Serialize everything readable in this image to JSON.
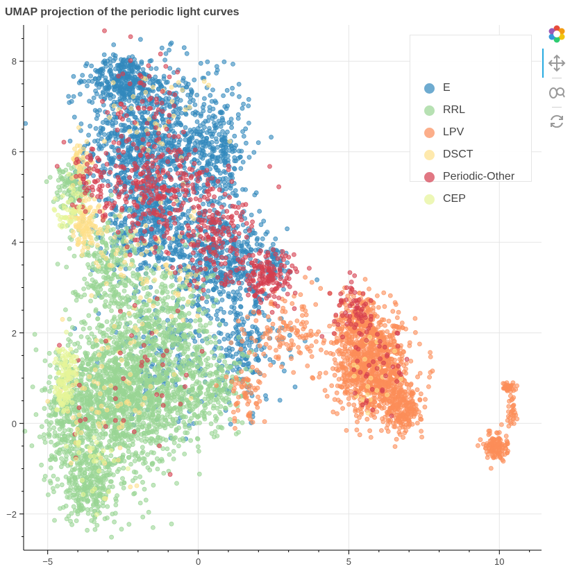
{
  "chart_data": {
    "type": "scatter",
    "title": "UMAP projection of the periodic light curves",
    "xlabel": "",
    "ylabel": "",
    "xlim": [
      -5.8,
      11.4
    ],
    "ylim": [
      -2.8,
      8.8
    ],
    "xticks": [
      -5,
      0,
      5,
      10
    ],
    "xtick_labels": [
      "−5",
      "0",
      "5",
      "10"
    ],
    "yticks": [
      -2,
      0,
      2,
      4,
      6,
      8
    ],
    "ytick_labels": [
      "−2",
      "0",
      "2",
      "4",
      "6",
      "8"
    ],
    "grid": true,
    "legend_position": "top-right",
    "series": [
      {
        "name": "E",
        "color": "#3288bd",
        "regions": [
          {
            "cx": -1.8,
            "cy": 6.2,
            "sx": 1.3,
            "sy": 1.2,
            "n": 900
          },
          {
            "cx": -2.5,
            "cy": 7.6,
            "sx": 0.7,
            "sy": 0.35,
            "n": 250
          },
          {
            "cx": 0.5,
            "cy": 6.0,
            "sx": 0.8,
            "sy": 1.0,
            "n": 350
          },
          {
            "cx": 0.8,
            "cy": 3.6,
            "sx": 1.0,
            "sy": 0.8,
            "n": 450
          },
          {
            "cx": -1.5,
            "cy": 4.3,
            "sx": 1.0,
            "sy": 0.7,
            "n": 350
          },
          {
            "cx": 1.5,
            "cy": 1.7,
            "sx": 0.9,
            "sy": 0.9,
            "n": 200
          },
          {
            "cx": -1.0,
            "cy": 1.5,
            "sx": 1.5,
            "sy": 1.0,
            "n": 150
          },
          {
            "cx": 2.5,
            "cy": 3.5,
            "sx": 0.3,
            "sy": 0.3,
            "n": 50
          }
        ]
      },
      {
        "name": "RRL",
        "color": "#99d594",
        "regions": [
          {
            "cx": -2.5,
            "cy": 0.6,
            "sx": 1.3,
            "sy": 1.1,
            "n": 1400
          },
          {
            "cx": -3.6,
            "cy": -1.4,
            "sx": 0.6,
            "sy": 0.5,
            "n": 250
          },
          {
            "cx": -4.2,
            "cy": 0.0,
            "sx": 0.6,
            "sy": 0.9,
            "n": 300
          },
          {
            "cx": -1.0,
            "cy": 2.3,
            "sx": 1.0,
            "sy": 0.9,
            "n": 300
          },
          {
            "cx": -0.3,
            "cy": 0.8,
            "sx": 0.8,
            "sy": 0.8,
            "n": 250
          },
          {
            "cx": -3.0,
            "cy": 3.5,
            "sx": 0.8,
            "sy": 0.7,
            "n": 250
          },
          {
            "cx": -4.2,
            "cy": 5.2,
            "sx": 0.4,
            "sy": 0.4,
            "n": 120
          },
          {
            "cx": 0.8,
            "cy": 0.8,
            "sx": 0.6,
            "sy": 0.6,
            "n": 100
          }
        ]
      },
      {
        "name": "LPV",
        "color": "#fc8d59",
        "regions": [
          {
            "cx": 5.8,
            "cy": 1.2,
            "sx": 0.8,
            "sy": 0.7,
            "n": 900
          },
          {
            "cx": 6.8,
            "cy": 0.3,
            "sx": 0.4,
            "sy": 0.35,
            "n": 200
          },
          {
            "cx": 5.4,
            "cy": 2.3,
            "sx": 0.5,
            "sy": 0.4,
            "n": 200
          },
          {
            "cx": 9.9,
            "cy": -0.5,
            "sx": 0.25,
            "sy": 0.2,
            "n": 120
          },
          {
            "cx": 10.3,
            "cy": 0.8,
            "sx": 0.15,
            "sy": 0.05,
            "n": 40
          },
          {
            "cx": 10.4,
            "cy": 0.3,
            "sx": 0.12,
            "sy": 0.3,
            "n": 30
          },
          {
            "cx": 3.0,
            "cy": 2.0,
            "sx": 0.9,
            "sy": 0.6,
            "n": 130
          },
          {
            "cx": 1.6,
            "cy": 0.7,
            "sx": 0.5,
            "sy": 0.5,
            "n": 60
          }
        ]
      },
      {
        "name": "DSCT",
        "color": "#fee08b",
        "regions": [
          {
            "cx": -3.7,
            "cy": 4.4,
            "sx": 0.35,
            "sy": 0.4,
            "n": 120
          },
          {
            "cx": -3.9,
            "cy": 5.7,
            "sx": 0.3,
            "sy": 0.3,
            "n": 50
          },
          {
            "cx": -1.5,
            "cy": 3.5,
            "sx": 1.3,
            "sy": 1.0,
            "n": 80
          },
          {
            "cx": -3.0,
            "cy": 0.5,
            "sx": 1.2,
            "sy": 1.0,
            "n": 70
          },
          {
            "cx": -1.5,
            "cy": 6.5,
            "sx": 1.2,
            "sy": 1.0,
            "n": 40
          },
          {
            "cx": 5.8,
            "cy": 1.0,
            "sx": 0.7,
            "sy": 0.7,
            "n": 20
          }
        ]
      },
      {
        "name": "Periodic-Other",
        "color": "#d53e4f",
        "regions": [
          {
            "cx": -1.5,
            "cy": 5.2,
            "sx": 1.1,
            "sy": 0.8,
            "n": 250
          },
          {
            "cx": 0.5,
            "cy": 4.2,
            "sx": 0.9,
            "sy": 0.8,
            "n": 180
          },
          {
            "cx": 2.3,
            "cy": 3.2,
            "sx": 0.6,
            "sy": 0.4,
            "n": 150
          },
          {
            "cx": -3.5,
            "cy": 5.3,
            "sx": 0.5,
            "sy": 0.5,
            "n": 60
          },
          {
            "cx": -1.5,
            "cy": 7.0,
            "sx": 1.0,
            "sy": 0.7,
            "n": 60
          },
          {
            "cx": 5.2,
            "cy": 2.5,
            "sx": 0.5,
            "sy": 0.4,
            "n": 60
          },
          {
            "cx": 6.0,
            "cy": 1.0,
            "sx": 0.7,
            "sy": 0.7,
            "n": 40
          },
          {
            "cx": -2.0,
            "cy": 1.0,
            "sx": 1.4,
            "sy": 1.2,
            "n": 40
          }
        ]
      },
      {
        "name": "CEP",
        "color": "#e6f598",
        "regions": [
          {
            "cx": -4.4,
            "cy": 1.2,
            "sx": 0.25,
            "sy": 0.4,
            "n": 90
          },
          {
            "cx": -4.5,
            "cy": 0.6,
            "sx": 0.2,
            "sy": 0.2,
            "n": 40
          },
          {
            "cx": -4.3,
            "cy": 4.8,
            "sx": 0.3,
            "sy": 0.3,
            "n": 40
          },
          {
            "cx": -3.5,
            "cy": -0.8,
            "sx": 0.6,
            "sy": 0.6,
            "n": 30
          }
        ]
      }
    ]
  },
  "legend": {
    "items": [
      {
        "label": "E",
        "color": "#3288bd"
      },
      {
        "label": "RRL",
        "color": "#99d594"
      },
      {
        "label": "LPV",
        "color": "#fc8d59"
      },
      {
        "label": "DSCT",
        "color": "#fee08b"
      },
      {
        "label": "Periodic-Other",
        "color": "#d53e4f"
      },
      {
        "label": "CEP",
        "color": "#e6f598"
      }
    ]
  },
  "toolbar": {
    "items": [
      {
        "icon": "bokeh-logo-icon"
      },
      {
        "icon": "pan-icon"
      },
      {
        "icon": "wheel-zoom-icon"
      },
      {
        "icon": "reset-icon"
      }
    ]
  }
}
